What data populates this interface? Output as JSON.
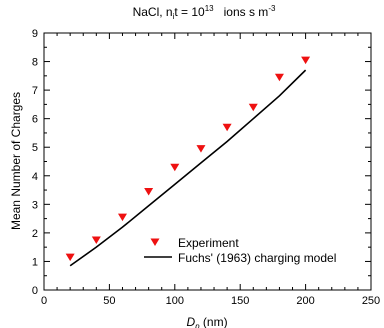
{
  "chart_data": {
    "type": "scatter",
    "title": {
      "prefix": "NaCl,  n",
      "sub": "i",
      "mid": "t = 10",
      "sup1": "13",
      "unit": "   ions s m",
      "sup2": "-3"
    },
    "xlabel": {
      "main": "D",
      "sub": "p",
      "unit": " (nm)"
    },
    "ylabel": "Mean Number of Charges",
    "xlim": [
      0,
      250
    ],
    "ylim": [
      0,
      9
    ],
    "xticks": [
      0,
      50,
      100,
      150,
      200,
      250
    ],
    "yticks": [
      0,
      1,
      2,
      3,
      4,
      5,
      6,
      7,
      8,
      9
    ],
    "xticklabels": [
      "0",
      "50",
      "100",
      "150",
      "200",
      "250"
    ],
    "yticklabels": [
      "0",
      "1",
      "2",
      "3",
      "4",
      "5",
      "6",
      "7",
      "8",
      "9"
    ],
    "grid": false,
    "legend_position": "lower-right",
    "series": [
      {
        "name": "Experiment",
        "kind": "markers",
        "marker": "triangle-down",
        "color": "#ee1111",
        "x": [
          20,
          40,
          60,
          80,
          100,
          120,
          140,
          160,
          180,
          200
        ],
        "y": [
          1.15,
          1.75,
          2.55,
          3.45,
          4.3,
          4.95,
          5.7,
          6.4,
          7.45,
          8.05
        ]
      },
      {
        "name": "Fuchs' (1963) charging model",
        "kind": "line",
        "color": "#000000",
        "x": [
          20,
          40,
          60,
          80,
          100,
          120,
          140,
          160,
          180,
          200
        ],
        "y": [
          0.85,
          1.5,
          2.2,
          2.95,
          3.7,
          4.45,
          5.2,
          6.0,
          6.8,
          7.7
        ]
      }
    ]
  }
}
